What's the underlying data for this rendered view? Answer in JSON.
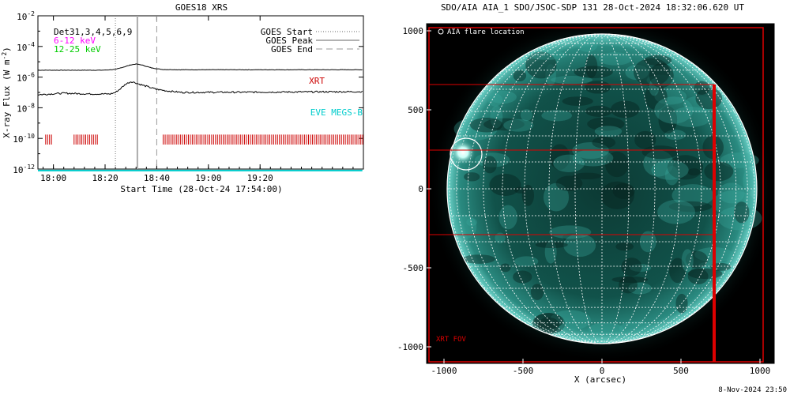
{
  "chart_data": [
    {
      "type": "line",
      "title": "GOES18 XRS",
      "xlabel": "Start Time (28-Oct-24 17:54:00)",
      "ylabel": "X-ray Flux (W m",
      "ylabel_sup": "-2",
      "ylabel_end": ")",
      "x_start_minutes": 0,
      "x_end_minutes": 126,
      "ylim_log10": [
        -12,
        -2
      ],
      "xticks": [
        {
          "minutes": 6,
          "label": "18:00"
        },
        {
          "minutes": 26,
          "label": "18:20"
        },
        {
          "minutes": 46,
          "label": "18:40"
        },
        {
          "minutes": 66,
          "label": "19:00"
        },
        {
          "minutes": 86,
          "label": "19:20"
        }
      ],
      "yticks": [
        {
          "exp": -12,
          "base": "10",
          "sup": "-12"
        },
        {
          "exp": -10,
          "base": "10",
          "sup": "-10"
        },
        {
          "exp": -8,
          "base": "10",
          "sup": "-8"
        },
        {
          "exp": -6,
          "base": "10",
          "sup": "-6"
        },
        {
          "exp": -4,
          "base": "10",
          "sup": "-4"
        },
        {
          "exp": -2,
          "base": "10",
          "sup": "-2"
        }
      ],
      "det_label": "Det31,3,4,5,6,9",
      "channel_labels": [
        {
          "text": "6-12 keV",
          "color": "#ff00ff"
        },
        {
          "text": "12-25 keV",
          "color": "#00cc00"
        }
      ],
      "legend": [
        {
          "text": "GOES Start",
          "style": "dotted"
        },
        {
          "text": "GOES Peak",
          "style": "solid"
        },
        {
          "text": "GOES End",
          "style": "dashed"
        }
      ],
      "events_minutes": {
        "start": 30,
        "peak": 38.5,
        "end": 46
      },
      "series": [
        {
          "name": "long channel",
          "color": "#000000",
          "x": [
            0,
            25,
            30,
            33,
            36,
            38,
            40,
            44,
            48,
            55,
            126
          ],
          "log10": [
            -5.55,
            -5.55,
            -5.5,
            -5.35,
            -5.2,
            -5.15,
            -5.2,
            -5.4,
            -5.5,
            -5.52,
            -5.52
          ]
        },
        {
          "name": "short channel",
          "color": "#000000",
          "x": [
            0,
            10,
            20,
            28,
            30,
            32,
            34,
            36,
            37.5,
            39,
            41,
            43,
            46,
            50,
            56,
            126
          ],
          "log10": [
            -7.15,
            -7.05,
            -7.1,
            -7.1,
            -7.0,
            -6.75,
            -6.45,
            -6.3,
            -6.35,
            -6.45,
            -6.55,
            -6.65,
            -6.8,
            -6.9,
            -7.0,
            -6.95
          ]
        },
        {
          "name": "EVE MEGS-B",
          "color": "#00cccc",
          "x": [
            0,
            126
          ],
          "log10": [
            -12.1,
            -12.1
          ]
        }
      ],
      "xrt_label": "XRT",
      "xrt_color": "#cc0000",
      "xrt_obs_minutes": [
        [
          3,
          5.5
        ],
        [
          14,
          23.5
        ],
        [
          48.5,
          126
        ]
      ],
      "xrt_log10_band": [
        -10.4,
        -9.75
      ],
      "eve_label": "EVE MEGS-B",
      "eve_color": "#00cccc"
    },
    {
      "type": "scatter",
      "title": "SDO/AIA AIA_1 SDO/JSOC-SDP 131 28-Oct-2024 18:32:06.620 UT",
      "xlabel": "X (arcsec)",
      "xlim": [
        -1100,
        1100
      ],
      "ylim": [
        -1100,
        1100
      ],
      "xticks": [
        -1000,
        -500,
        0,
        500,
        1000
      ],
      "yticks": [
        -1000,
        -500,
        0,
        500,
        1000
      ],
      "xtick_labels": [
        "-1000",
        "-500",
        "0",
        "500",
        "1000"
      ],
      "ytick_labels": [
        "-1000",
        "-500",
        "0",
        "500",
        "1000"
      ],
      "solar_radius_arcsec": 980,
      "flare_marker_label": "AIA flare location",
      "flare_location_arcsec": [
        -880,
        230
      ],
      "flare_circle_radius_arcsec": 100,
      "xrt_fov_label": "XRT FOV",
      "xrt_fov_outer_arcsec": [
        -1095,
        -1095,
        1020,
        1020
      ],
      "xrt_fov_boxes_arcsec": [
        [
          -1095,
          -1095,
          710,
          660
        ],
        [
          -1095,
          245,
          710,
          660
        ],
        [
          -1095,
          -290,
          710,
          245
        ],
        [
          -1095,
          -1095,
          710,
          -290
        ]
      ],
      "xrt_fov_color": "#dd0000",
      "grid_step_deg": 10
    }
  ],
  "footer_date": "8-Nov-2024 23:50"
}
